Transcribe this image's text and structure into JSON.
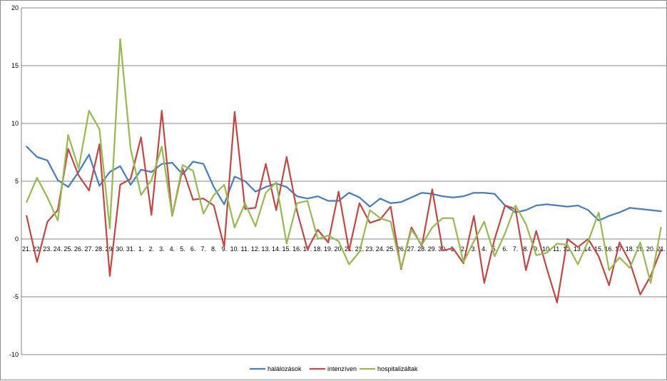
{
  "chart_data": {
    "type": "line",
    "title": "",
    "xlabel": "",
    "ylabel": "",
    "ylim": [
      -10,
      20
    ],
    "yticks": [
      -10,
      -5,
      0,
      5,
      10,
      15,
      20
    ],
    "grid": true,
    "legend_position": "bottom",
    "categories": [
      "21.",
      "22.",
      "23.",
      "24.",
      "25.",
      "26.",
      "27.",
      "28.",
      "29.",
      "30.",
      "31.",
      "1.",
      "2.",
      "3.",
      "4.",
      "5.",
      "6.",
      "7.",
      "8.",
      "9.",
      "10.",
      "11.",
      "12.",
      "13.",
      "14.",
      "15.",
      "16.",
      "17.",
      "18.",
      "19.",
      "20.",
      "21.",
      "22.",
      "23.",
      "24.",
      "25.",
      "26.",
      "27.",
      "28.",
      "29.",
      "30.",
      "1.",
      "2.",
      "3.",
      "4.",
      "5.",
      "6.",
      "7.",
      "8.",
      "9.",
      "10.",
      "11.",
      "12.",
      "13.",
      "14.",
      "15.",
      "16.",
      "17.",
      "18.",
      "19.",
      "20.",
      "21."
    ],
    "series": [
      {
        "name": "halálozások",
        "color": "#4a7ebb",
        "values": [
          8.0,
          7.1,
          6.8,
          5.1,
          4.5,
          5.8,
          7.3,
          4.6,
          5.8,
          6.3,
          4.7,
          6.0,
          5.8,
          6.5,
          6.6,
          5.6,
          6.7,
          6.5,
          4.5,
          3.0,
          5.4,
          5.0,
          4.1,
          4.5,
          4.8,
          4.5,
          3.7,
          3.5,
          3.7,
          3.3,
          3.3,
          4.0,
          3.6,
          2.8,
          3.5,
          3.1,
          3.2,
          3.6,
          4.0,
          3.9,
          3.7,
          3.6,
          3.7,
          4.0,
          4.0,
          3.9,
          2.9,
          2.3,
          2.5,
          2.9,
          3.0,
          2.9,
          2.8,
          2.9,
          2.5,
          1.6,
          2.0,
          2.3,
          2.7,
          2.6,
          2.5,
          2.4
        ]
      },
      {
        "name": "intenzíven",
        "color": "#be4b48",
        "values": [
          2.0,
          -2.0,
          1.5,
          2.5,
          7.8,
          5.5,
          4.2,
          8.2,
          -3.2,
          4.7,
          5.2,
          8.8,
          2.1,
          11.1,
          2.0,
          6.1,
          3.4,
          3.5,
          2.9,
          -0.7,
          11.0,
          2.6,
          2.7,
          6.5,
          2.5,
          7.1,
          2.4,
          -0.9,
          0.8,
          -0.3,
          4.1,
          -1.0,
          3.1,
          1.4,
          1.7,
          2.8,
          -2.6,
          1.0,
          -0.6,
          4.3,
          -1.0,
          -0.8,
          -2.1,
          2.0,
          -3.8,
          0.0,
          2.9,
          2.6,
          -2.7,
          0.7,
          -2.5,
          -5.5,
          0.0,
          -0.7,
          0.0,
          -1.5,
          -4.0,
          -0.3,
          -2.0,
          -4.8,
          -3.2,
          -0.9
        ]
      },
      {
        "name": "hospitalizáltak",
        "color": "#98b954",
        "values": [
          3.2,
          5.3,
          3.6,
          1.6,
          9.0,
          6.1,
          11.1,
          9.5,
          0.9,
          17.3,
          7.8,
          3.8,
          5.1,
          8.0,
          2.0,
          6.4,
          5.9,
          2.2,
          3.8,
          4.7,
          1.0,
          3.1,
          1.1,
          4.0,
          4.9,
          -0.4,
          3.1,
          3.3,
          0.0,
          0.3,
          -0.2,
          -2.2,
          -1.1,
          2.5,
          1.8,
          1.5,
          -2.5,
          0.8,
          -0.5,
          1.0,
          1.8,
          1.8,
          -2.0,
          -0.2,
          1.5,
          -1.5,
          0.5,
          2.9,
          1.3,
          -1.4,
          -1.2,
          -0.4,
          -0.5,
          -2.2,
          -0.2,
          2.3,
          -2.7,
          -1.6,
          -2.5,
          -0.3,
          -3.8,
          1.0
        ]
      }
    ]
  }
}
